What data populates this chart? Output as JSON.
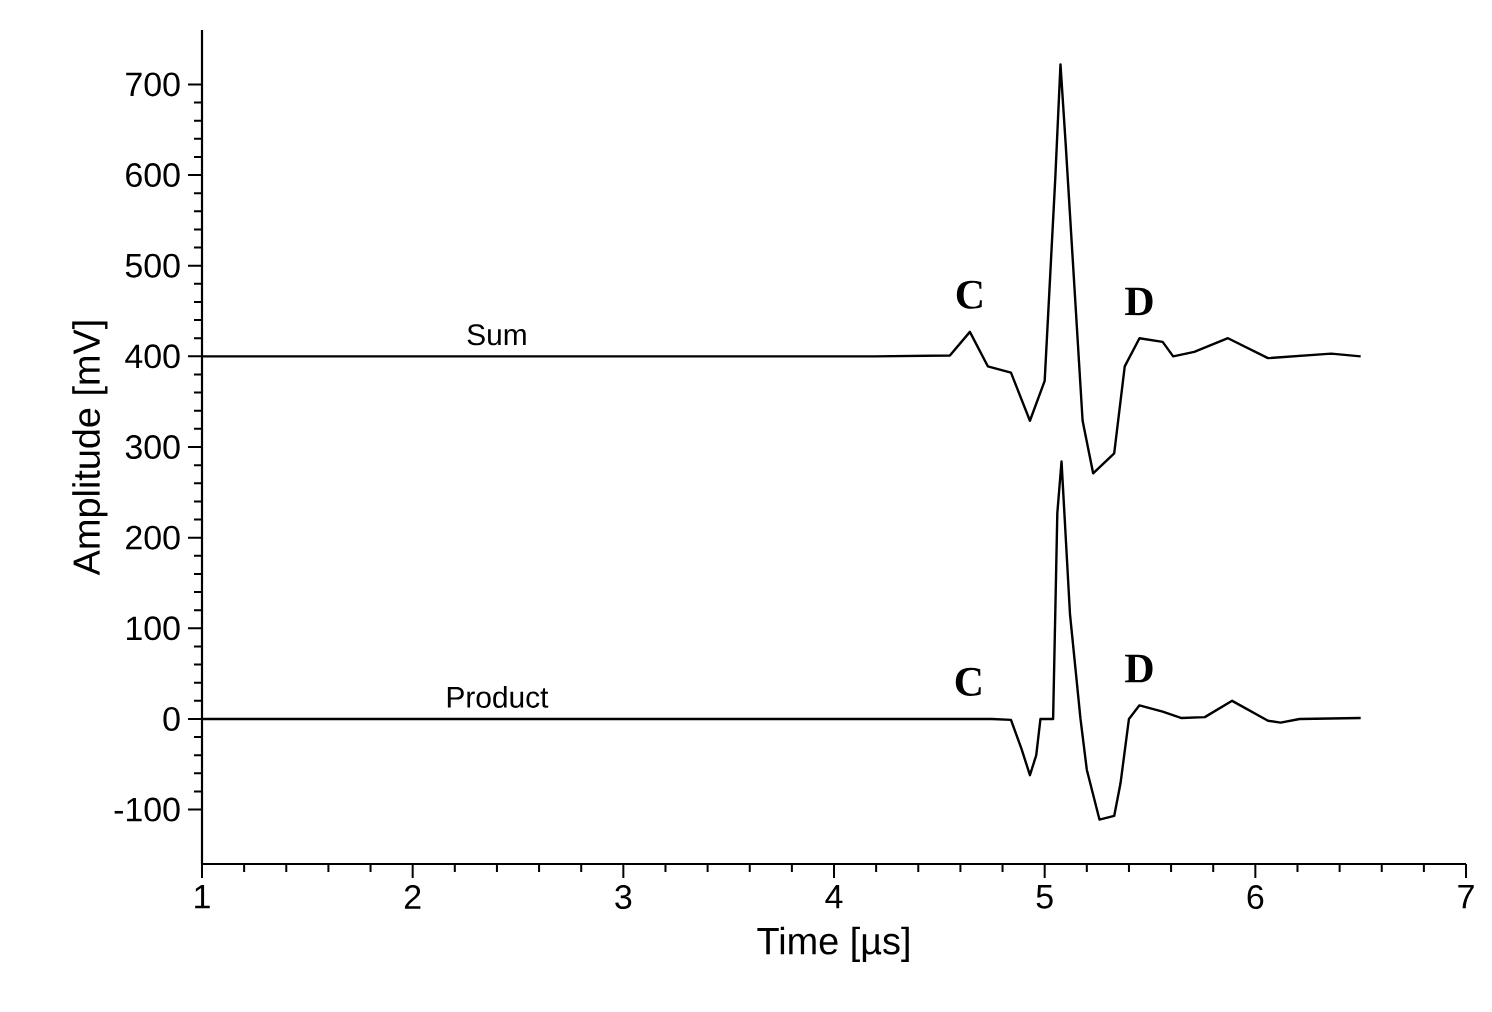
{
  "chart_data": {
    "type": "line",
    "xlabel": "Time [µs]",
    "ylabel": "Amplitude [mV]",
    "xlim": [
      1,
      7
    ],
    "ylim": [
      -160,
      760
    ],
    "xticks": [
      1,
      2,
      3,
      4,
      5,
      6,
      7
    ],
    "yticks": [
      -100,
      0,
      100,
      200,
      300,
      400,
      500,
      600,
      700
    ],
    "grid": false,
    "marker": "none",
    "line_style": "solid",
    "series": [
      {
        "name": "Sum",
        "color": "#000000",
        "x": [
          1.0,
          2.4,
          4.19,
          4.55,
          4.645,
          4.73,
          4.84,
          4.93,
          5.0,
          5.05,
          5.075,
          5.1,
          5.18,
          5.23,
          5.33,
          5.38,
          5.45,
          5.56,
          5.61,
          5.71,
          5.87,
          6.06,
          6.36,
          6.5
        ],
        "values": [
          400,
          400,
          400,
          401,
          427,
          389,
          382,
          329,
          373,
          595,
          722,
          633,
          329,
          271,
          293,
          389,
          420,
          416,
          400,
          405,
          420,
          398,
          403,
          400
        ]
      },
      {
        "name": "Product",
        "color": "#000000",
        "x": [
          1.0,
          2.4,
          4.75,
          4.84,
          4.89,
          4.93,
          4.96,
          4.98,
          5.04,
          5.06,
          5.08,
          5.12,
          5.17,
          5.2,
          5.26,
          5.33,
          5.36,
          5.4,
          5.45,
          5.56,
          5.65,
          5.76,
          5.89,
          6.06,
          6.12,
          6.21,
          6.5
        ],
        "values": [
          0,
          0,
          0,
          -1,
          -33,
          -62,
          -40,
          0,
          0,
          227,
          284,
          116,
          0,
          -56,
          -111,
          -107,
          -71,
          0,
          15,
          8,
          1,
          2,
          20,
          -2,
          -4,
          0,
          1
        ]
      }
    ],
    "annotations": [
      {
        "text": "C",
        "x": 4.645,
        "y": 427
      },
      {
        "text": "D",
        "x": 5.45,
        "y": 420
      },
      {
        "text": "C",
        "x": 4.64,
        "y": 0
      },
      {
        "text": "D",
        "x": 5.45,
        "y": 15
      }
    ]
  }
}
